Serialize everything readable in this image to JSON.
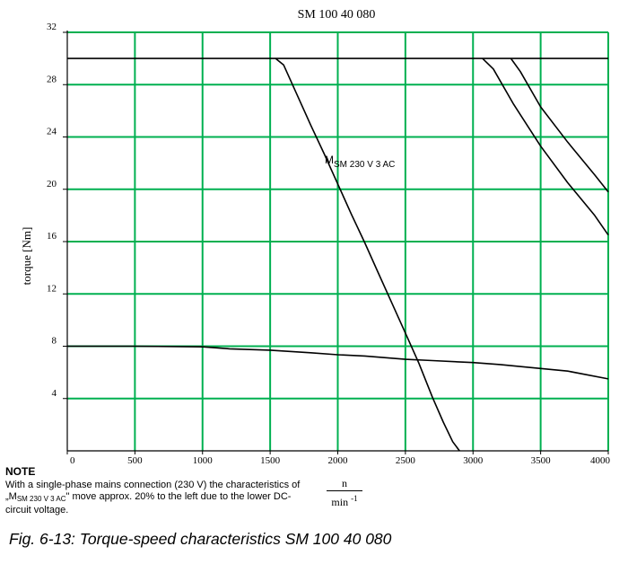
{
  "chart_data": {
    "type": "line",
    "title": "SM 100 40 080",
    "xlabel": "",
    "ylabel": "torque [Nm]",
    "xlim": [
      0,
      4000
    ],
    "ylim": [
      0,
      32
    ],
    "x_ticks": [
      "0",
      "500",
      "1000",
      "1500",
      "2000",
      "2500",
      "3000",
      "3500",
      "4000"
    ],
    "y_ticks": [
      "4",
      "8",
      "12",
      "16",
      "20",
      "24",
      "28",
      "32"
    ],
    "grid": true,
    "colors": {
      "grid": "#00b050",
      "line": "#000000"
    },
    "annotations": [
      {
        "main": "M",
        "sub": "SM 230 V 3 AC"
      }
    ],
    "series": [
      {
        "values_x": [
          0,
          4000
        ],
        "values_y": [
          30,
          30
        ]
      },
      {
        "values_x": [
          0,
          500,
          1000,
          1200,
          1500,
          1800,
          2000,
          2200,
          2500,
          2700,
          3000,
          3200,
          3500,
          3700,
          4000
        ],
        "values_y": [
          8,
          8,
          7.95,
          7.8,
          7.7,
          7.5,
          7.35,
          7.25,
          7.0,
          6.9,
          6.75,
          6.6,
          6.3,
          6.1,
          5.5
        ]
      },
      {
        "values_x": [
          1540,
          1600,
          1700,
          1800,
          1900,
          2000,
          2100,
          2200,
          2300,
          2400,
          2500,
          2600,
          2700,
          2780,
          2850,
          2900
        ],
        "values_y": [
          30,
          29.5,
          27.2,
          24.9,
          22.7,
          20.4,
          18.1,
          15.9,
          13.6,
          11.3,
          9.0,
          6.7,
          4.1,
          2.2,
          0.7,
          0
        ]
      },
      {
        "values_x": [
          3070,
          3150,
          3300,
          3500,
          3700,
          3900,
          4000
        ],
        "values_y": [
          30,
          29.2,
          26.5,
          23.3,
          20.5,
          18.0,
          16.5
        ]
      },
      {
        "values_x": [
          3280,
          3350,
          3500,
          3700,
          3900,
          4000
        ],
        "values_y": [
          30,
          29.0,
          26.3,
          23.6,
          21.1,
          19.8
        ]
      }
    ],
    "unit": {
      "numerator": "n",
      "denominator": "min",
      "exponent": "-1"
    }
  },
  "note": {
    "title": "NOTE",
    "line1": "With a single-phase mains connection (230 V) the characteristics of",
    "line2_prefix": "„M",
    "line2_sub": "SM 230 V 3 AC",
    "line2_suffix": "\" move approx. 20% to the left due to the lower DC-",
    "line3": "circuit voltage."
  },
  "caption": "Fig. 6-13: Torque-speed characteristics SM 100 40 080"
}
